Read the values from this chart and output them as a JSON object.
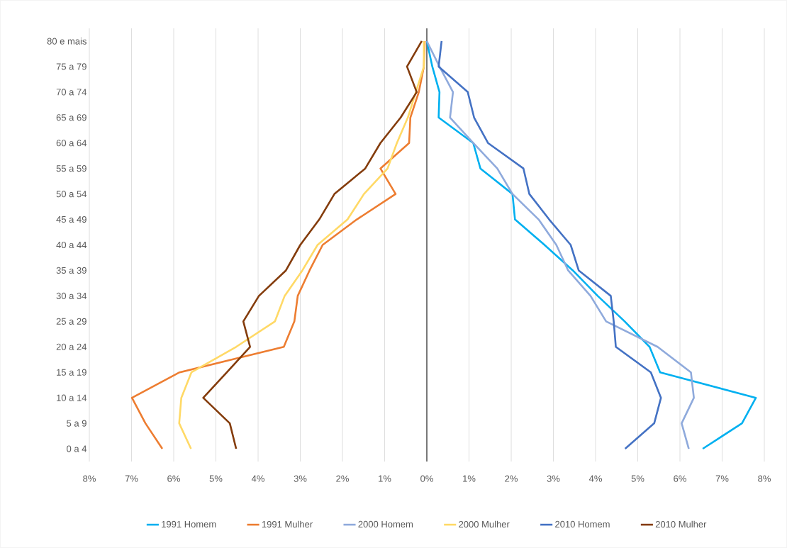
{
  "chart_data": {
    "type": "line",
    "orientation": "horizontal",
    "categories": [
      "80 e mais",
      "75 a 79",
      "70 a 74",
      "65 a 69",
      "60 a 64",
      "55 a 59",
      "50 a 54",
      "45 a 49",
      "40 a 44",
      "35 a 39",
      "30 a 34",
      "25 a 29",
      "20 a 24",
      "15 a 19",
      "10 a 14",
      "5 a 9",
      "0 a 4"
    ],
    "series": [
      {
        "name": "1991 Homem",
        "color": "#00b0f0",
        "values": [
          0.0,
          0.13,
          0.3,
          0.28,
          1.1,
          1.27,
          2.03,
          2.09,
          2.79,
          3.46,
          4.05,
          4.69,
          5.28,
          5.53,
          7.8,
          7.47,
          6.54
        ]
      },
      {
        "name": "1991 Mulher",
        "color": "#ed7d31",
        "values": [
          -0.05,
          -0.07,
          -0.19,
          -0.39,
          -0.42,
          -1.1,
          -0.74,
          -1.66,
          -2.47,
          -2.78,
          -3.06,
          -3.14,
          -3.39,
          -5.86,
          -6.99,
          -6.67,
          -6.27
        ]
      },
      {
        "name": "2000 Homem",
        "color": "#8faadc",
        "values": [
          0.0,
          0.3,
          0.62,
          0.55,
          1.1,
          1.67,
          2.03,
          2.65,
          3.07,
          3.35,
          3.88,
          4.25,
          5.47,
          6.26,
          6.33,
          6.04,
          6.21
        ]
      },
      {
        "name": "2000 Mulher",
        "color": "#ffd966",
        "values": [
          -0.07,
          -0.07,
          -0.26,
          -0.45,
          -0.71,
          -0.93,
          -1.49,
          -1.88,
          -2.59,
          -2.95,
          -3.37,
          -3.6,
          -4.52,
          -5.58,
          -5.82,
          -5.87,
          -5.59
        ]
      },
      {
        "name": "2010 Homem",
        "color": "#4472c4",
        "values": [
          0.35,
          0.28,
          0.97,
          1.12,
          1.45,
          2.29,
          2.43,
          2.9,
          3.41,
          3.6,
          4.36,
          4.43,
          4.48,
          5.31,
          5.55,
          5.39,
          4.7
        ]
      },
      {
        "name": "2010 Mulher",
        "color": "#843c0c",
        "values": [
          -0.12,
          -0.47,
          -0.24,
          -0.62,
          -1.1,
          -1.46,
          -2.19,
          -2.55,
          -3.0,
          -3.34,
          -3.98,
          -4.35,
          -4.19,
          -4.74,
          -5.3,
          -4.67,
          -4.52
        ]
      }
    ],
    "xlim": [
      -8,
      8
    ],
    "xticks": [
      {
        "value": -8,
        "label": "8%"
      },
      {
        "value": -7,
        "label": "7%"
      },
      {
        "value": -6,
        "label": "6%"
      },
      {
        "value": -5,
        "label": "5%"
      },
      {
        "value": -4,
        "label": "4%"
      },
      {
        "value": -3,
        "label": "3%"
      },
      {
        "value": -2,
        "label": "2%"
      },
      {
        "value": -1,
        "label": "1%"
      },
      {
        "value": 0,
        "label": "0%"
      },
      {
        "value": 1,
        "label": "1%"
      },
      {
        "value": 2,
        "label": "2%"
      },
      {
        "value": 3,
        "label": "3%"
      },
      {
        "value": 4,
        "label": "4%"
      },
      {
        "value": 5,
        "label": "5%"
      },
      {
        "value": 6,
        "label": "6%"
      },
      {
        "value": 7,
        "label": "7%"
      },
      {
        "value": 8,
        "label": "8%"
      }
    ],
    "grid": "x",
    "legend": "bottom",
    "line_style": "solid"
  }
}
